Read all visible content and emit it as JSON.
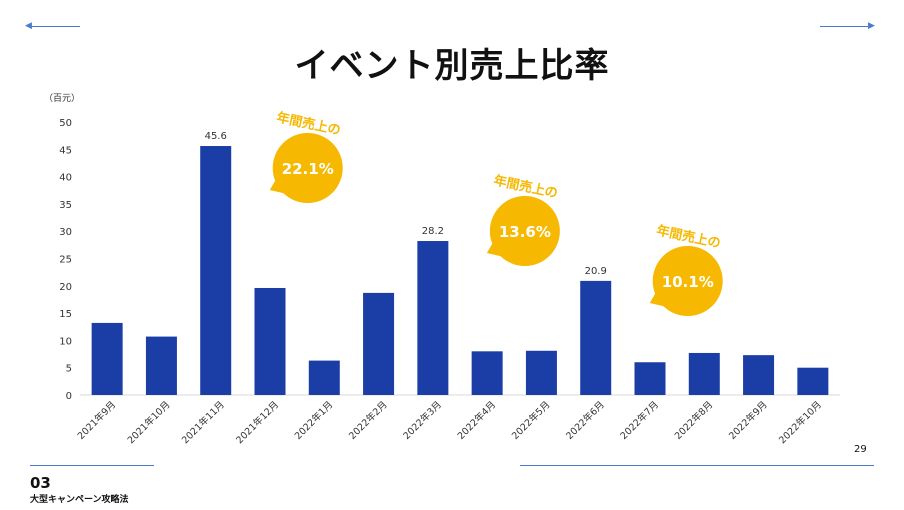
{
  "slide": {
    "title": "イベント別売上比率",
    "section_number": "03",
    "section_name": "大型キャンペーン攻略法",
    "page_number": "29"
  },
  "colors": {
    "bar": "#1b3da6",
    "bubble": "#f6b800",
    "bubble_text": "#ffffff",
    "accent_line": "#4a7bd0"
  },
  "chart_data": {
    "type": "bar",
    "title": "",
    "unit_label": "（百元）",
    "categories": [
      "2021年9月",
      "2021年10月",
      "2021年11月",
      "2021年12月",
      "2022年1月",
      "2022年2月",
      "2022年3月",
      "2022年4月",
      "2022年5月",
      "2022年6月",
      "2022年7月",
      "2022年8月",
      "2022年9月",
      "2022年10月"
    ],
    "values": [
      13.2,
      10.7,
      45.6,
      19.6,
      6.3,
      18.7,
      28.2,
      8.0,
      8.1,
      20.9,
      6.0,
      7.7,
      7.3,
      5.0
    ],
    "data_labels": {
      "2": "45.6",
      "6": "28.2",
      "9": "20.9"
    },
    "ylim": [
      0,
      50
    ],
    "yticks": [
      0,
      5,
      10,
      15,
      20,
      25,
      30,
      35,
      40,
      45,
      50
    ],
    "grid": false,
    "callouts": [
      {
        "bar_index": 2,
        "label": "年間売上の",
        "value": "22.1%"
      },
      {
        "bar_index": 6,
        "label": "年間売上の",
        "value": "13.6%"
      },
      {
        "bar_index": 9,
        "label": "年間売上の",
        "value": "10.1%"
      }
    ]
  }
}
